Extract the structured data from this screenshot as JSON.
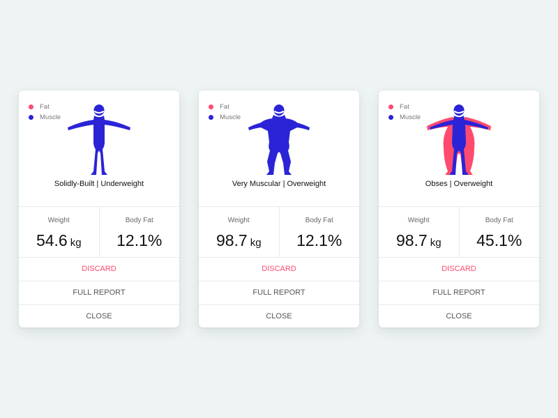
{
  "colors": {
    "fat": "#ff4a70",
    "muscle": "#2b24d6"
  },
  "cards": [
    {
      "legend": {
        "fat": "Fat",
        "muscle": "Muscle"
      },
      "figure": "solidly-built-figure",
      "body_type": "Solidly-Built | Underweight",
      "weight": {
        "label": "Weight",
        "value": "54.6",
        "unit": "kg"
      },
      "body_fat": {
        "label": "Body Fat",
        "value": "12.1%"
      },
      "actions": {
        "discard": "DISCARD",
        "full_report": "FULL REPORT",
        "close": "CLOSE"
      }
    },
    {
      "legend": {
        "fat": "Fat",
        "muscle": "Muscle"
      },
      "figure": "very-muscular-figure",
      "body_type": "Very Muscular | Overweight",
      "weight": {
        "label": "Weight",
        "value": "98.7",
        "unit": "kg"
      },
      "body_fat": {
        "label": "Body Fat",
        "value": "12.1%"
      },
      "actions": {
        "discard": "DISCARD",
        "full_report": "FULL REPORT",
        "close": "CLOSE"
      }
    },
    {
      "legend": {
        "fat": "Fat",
        "muscle": "Muscle"
      },
      "figure": "obese-figure",
      "body_type": "Obses | Overweight",
      "weight": {
        "label": "Weight",
        "value": "98.7",
        "unit": "kg"
      },
      "body_fat": {
        "label": "Body Fat",
        "value": "45.1%"
      },
      "actions": {
        "discard": "DISCARD",
        "full_report": "FULL REPORT",
        "close": "CLOSE"
      }
    }
  ]
}
